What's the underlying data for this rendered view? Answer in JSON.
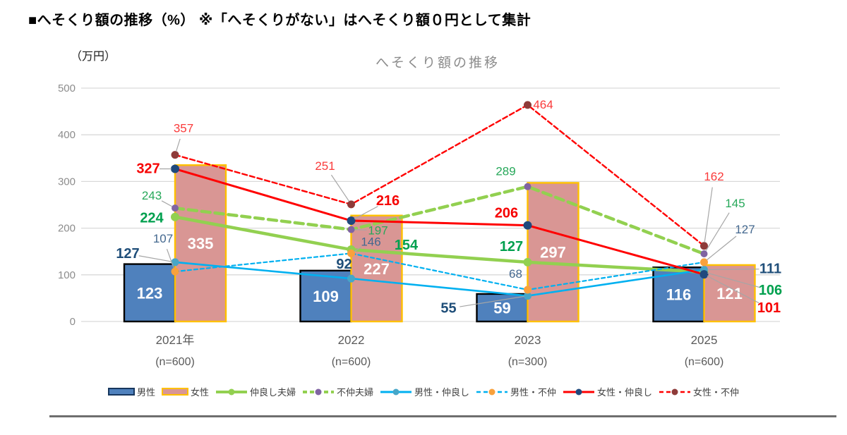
{
  "header": {
    "title": "■へそくり額の推移（%） ※「へそくりがない」はへそくり額０円として集計"
  },
  "chart_data": {
    "type": "combo-bar-line",
    "title": "へそくり額の推移",
    "unit_label": "（万円）",
    "ylabel": "万円",
    "ylim": [
      0,
      500
    ],
    "yticks": [
      0,
      100,
      200,
      300,
      400,
      500
    ],
    "grid": true,
    "legend_position": "bottom",
    "categories": [
      "2021年",
      "2022",
      "2023",
      "2025"
    ],
    "category_sublabels": [
      "(n=600)",
      "(n=600)",
      "(n=300)",
      "(n=600)"
    ],
    "bar_series": [
      {
        "key": "male",
        "name": "男性",
        "fill": "#4F81BD",
        "border": "#000000",
        "values": [
          123,
          109,
          59,
          116
        ],
        "value_color": "#FFFFFF"
      },
      {
        "key": "female",
        "name": "女性",
        "fill": "#D99694",
        "border": "#FFC000",
        "values": [
          335,
          227,
          297,
          121
        ],
        "value_color": "#FFFFFF"
      }
    ],
    "line_series": [
      {
        "key": "couple-good",
        "name": "仲良し夫婦",
        "color": "#92D050",
        "dash": false,
        "width": 4.5,
        "marker": "#92D050",
        "marker_r": 6,
        "label_color": "#00A04E",
        "label_bold": true,
        "values": [
          224,
          154,
          127,
          106
        ],
        "label_pos": [
          [
            -33,
            2,
            0
          ],
          [
            78,
            -6,
            0
          ],
          [
            -23,
            -22,
            0
          ],
          [
            94,
            26,
            1
          ]
        ]
      },
      {
        "key": "couple-bad",
        "name": "不仲夫婦",
        "color": "#92D050",
        "dash": true,
        "width": 4.5,
        "marker": "#8064A2",
        "marker_r": 5,
        "label_color": "#27A85A",
        "label_bold": false,
        "values": [
          243,
          197,
          289,
          145
        ],
        "label_pos": [
          [
            -33,
            -18,
            1
          ],
          [
            38,
            1,
            1
          ],
          [
            -31,
            -22,
            0
          ],
          [
            44,
            -72,
            1
          ]
        ]
      },
      {
        "key": "male-good",
        "name": "男性・仲良し",
        "color": "#00B0F0",
        "dash": false,
        "width": 2.6,
        "marker": "#46A6C8",
        "marker_r": 5.5,
        "label_color": "#1F4E79",
        "label_bold": true,
        "values": [
          127,
          92,
          55,
          111
        ],
        "label_pos": [
          [
            -67,
            -12,
            1
          ],
          [
            -10,
            -20,
            0
          ],
          [
            -112,
            18,
            1
          ],
          [
            94,
            -1,
            1
          ]
        ]
      },
      {
        "key": "male-bad",
        "name": "男性・不仲",
        "color": "#00B0F0",
        "dash": true,
        "width": 2.2,
        "marker": "#F9A13C",
        "marker_r": 5.5,
        "label_color": "#44688F",
        "label_bold": false,
        "values": [
          107,
          146,
          68,
          127
        ],
        "label_pos": [
          [
            -17,
            -47,
            1
          ],
          [
            28,
            -17,
            1
          ],
          [
            -17,
            -23,
            0
          ],
          [
            58,
            -47,
            1
          ]
        ]
      },
      {
        "key": "female-good",
        "name": "女性・仲良し",
        "color": "#FF0000",
        "dash": false,
        "width": 3,
        "marker": "#1F497D",
        "marker_r": 6,
        "label_color": "#F60000",
        "label_bold": true,
        "values": [
          327,
          216,
          206,
          101
        ],
        "label_pos": [
          [
            -38,
            0,
            1
          ],
          [
            52,
            -28,
            1
          ],
          [
            -30,
            -17,
            0
          ],
          [
            92,
            48,
            1
          ]
        ]
      },
      {
        "key": "female-bad",
        "name": "女性・不仲",
        "color": "#FF0000",
        "dash": true,
        "width": 2.4,
        "marker": "#8E3B39",
        "marker_r": 5.5,
        "label_color": "#FA3A3A",
        "label_bold": false,
        "values": [
          357,
          251,
          464,
          162
        ],
        "label_pos": [
          [
            12,
            -38,
            1
          ],
          [
            -37,
            -55,
            1
          ],
          [
            22,
            -1,
            0
          ],
          [
            14,
            -99,
            1
          ]
        ]
      }
    ],
    "legend": [
      {
        "key": "male",
        "label": "男性",
        "type": "bar",
        "fill": "#4F81BD",
        "border": "#17375E"
      },
      {
        "key": "female",
        "label": "女性",
        "type": "bar",
        "fill": "#D99694",
        "border": "#FFC000"
      },
      {
        "key": "couple-good",
        "label": "仲良し夫婦",
        "type": "line",
        "color": "#92D050",
        "dash": false,
        "marker": "#92D050",
        "width": 4
      },
      {
        "key": "couple-bad",
        "label": "不仲夫婦",
        "type": "line",
        "color": "#92D050",
        "dash": true,
        "marker": "#8064A2",
        "width": 4
      },
      {
        "key": "male-good",
        "label": "男性・仲良し",
        "type": "line",
        "color": "#00B0F0",
        "dash": false,
        "marker": "#46A6C8",
        "width": 3
      },
      {
        "key": "male-bad",
        "label": "男性・不仲",
        "type": "line",
        "color": "#00B0F0",
        "dash": true,
        "marker": "#F9A13C",
        "width": 2.5
      },
      {
        "key": "female-good",
        "label": "女性・仲良し",
        "type": "line",
        "color": "#FF0000",
        "dash": false,
        "marker": "#1F497D",
        "width": 3
      },
      {
        "key": "female-bad",
        "label": "女性・不仲",
        "type": "line",
        "color": "#FF0000",
        "dash": true,
        "marker": "#8E3B39",
        "width": 2.5
      }
    ],
    "colors": {
      "gridline": "#D9D9D9",
      "tick_label": "#8C8C8C",
      "axis_label": "#595959",
      "leader_line": "#A6A6A6"
    }
  }
}
